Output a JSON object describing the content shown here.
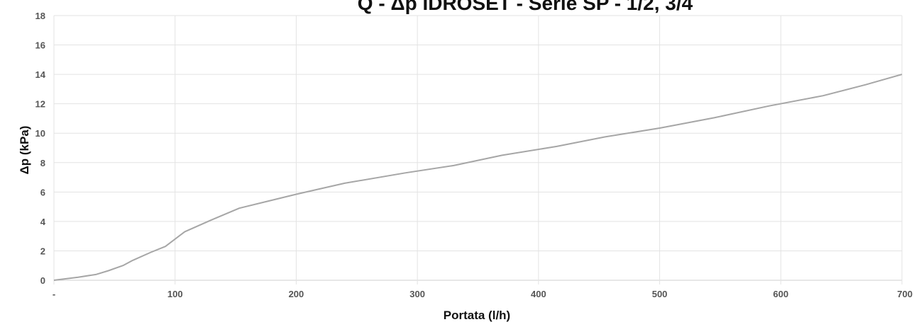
{
  "chart_data": {
    "type": "line",
    "title": "Q - Δp IDROSET - Serie SP - 1/2, 3/4",
    "xlabel": "Portata (l/h)",
    "ylabel": "Δp (kPa)",
    "xlim": [
      0,
      700
    ],
    "ylim": [
      0,
      18
    ],
    "x_ticks": [
      0,
      100,
      200,
      300,
      400,
      500,
      600,
      700
    ],
    "x_tick_labels": [
      "-",
      "100",
      "200",
      "300",
      "400",
      "500",
      "600",
      "700"
    ],
    "y_ticks": [
      0,
      2,
      4,
      6,
      8,
      10,
      12,
      14,
      16,
      18
    ],
    "y_tick_labels": [
      "0",
      "2",
      "4",
      "6",
      "8",
      "10",
      "12",
      "14",
      "16",
      "18"
    ],
    "grid": true,
    "series_color": "#a6a6a6",
    "grid_color": "#e3e3e3",
    "series": [
      {
        "x": [
          0,
          20,
          35,
          45,
          57,
          65,
          80,
          92,
          108,
          130,
          153,
          200,
          240,
          290,
          330,
          370,
          415,
          455,
          500,
          545,
          590,
          635,
          670,
          700
        ],
        "y": [
          0,
          0.2,
          0.4,
          0.65,
          1.0,
          1.35,
          1.9,
          2.3,
          3.3,
          4.1,
          4.9,
          5.85,
          6.6,
          7.3,
          7.8,
          8.5,
          9.1,
          9.75,
          10.35,
          11.05,
          11.85,
          12.55,
          13.3,
          14.0
        ]
      }
    ]
  }
}
